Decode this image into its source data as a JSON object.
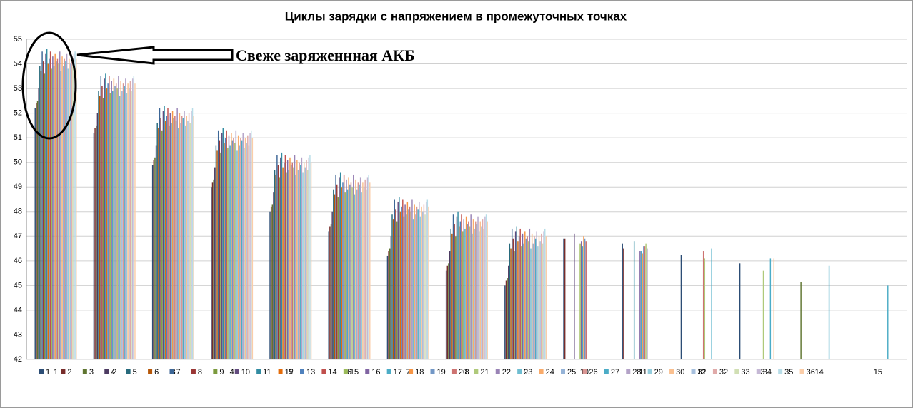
{
  "chart_data": {
    "type": "bar",
    "title": "Циклы зарядки с напряжением в промежуточных точках",
    "annotation": "Свеже заряженнная АКБ",
    "categories": [
      "1",
      "2",
      "3",
      "4",
      "5",
      "6",
      "7",
      "8",
      "9",
      "10",
      "11",
      "12",
      "13",
      "14",
      "15"
    ],
    "ylim": [
      42,
      55
    ],
    "yticks": [
      42,
      43,
      44,
      45,
      46,
      47,
      48,
      49,
      50,
      51,
      52,
      53,
      54,
      55
    ],
    "grid": true,
    "legend": "bottom",
    "series": [
      {
        "name": "1",
        "color": "#2C4D75",
        "values": [
          52.2,
          51.2,
          49.9,
          49.0,
          48.0,
          47.2,
          46.2,
          45.6,
          45.0,
          46.9,
          46.7,
          46.25,
          45.9,
          null,
          null
        ]
      },
      {
        "name": "2",
        "color": "#772C2A",
        "values": [
          52.4,
          51.4,
          50.1,
          49.2,
          48.2,
          47.4,
          46.4,
          45.8,
          45.2,
          46.9,
          46.5,
          null,
          null,
          null,
          null
        ]
      },
      {
        "name": "3",
        "color": "#5F7530",
        "values": [
          52.5,
          51.5,
          50.2,
          49.3,
          48.3,
          47.5,
          46.5,
          45.9,
          45.3,
          null,
          null,
          null,
          null,
          45.15,
          null
        ]
      },
      {
        "name": "4",
        "color": "#4D3B62",
        "values": [
          53.0,
          52.0,
          50.7,
          49.8,
          48.8,
          48.0,
          47.0,
          46.4,
          45.8,
          null,
          null,
          null,
          null,
          null,
          null
        ]
      },
      {
        "name": "5",
        "color": "#276A7C",
        "values": [
          53.9,
          52.9,
          51.6,
          50.7,
          49.7,
          48.9,
          47.9,
          47.3,
          46.7,
          null,
          null,
          null,
          null,
          null,
          null
        ]
      },
      {
        "name": "6",
        "color": "#B65708",
        "values": [
          53.7,
          52.7,
          51.4,
          50.5,
          49.5,
          48.7,
          47.7,
          47.1,
          46.5,
          null,
          null,
          null,
          null,
          null,
          null
        ]
      },
      {
        "name": "7",
        "color": "#3C6696",
        "values": [
          54.5,
          53.5,
          52.2,
          51.3,
          50.3,
          49.5,
          48.5,
          47.9,
          47.3,
          null,
          null,
          null,
          null,
          null,
          null
        ]
      },
      {
        "name": "8",
        "color": "#9A3735",
        "values": [
          54.1,
          53.1,
          51.8,
          50.9,
          49.9,
          49.1,
          48.1,
          47.5,
          46.9,
          null,
          null,
          null,
          null,
          null,
          null
        ]
      },
      {
        "name": "9",
        "color": "#7B9A3D",
        "values": [
          53.6,
          52.6,
          51.3,
          50.4,
          49.4,
          48.6,
          47.6,
          47.0,
          46.4,
          null,
          null,
          null,
          null,
          null,
          null
        ]
      },
      {
        "name": "10",
        "color": "#634C7F",
        "values": [
          54.4,
          53.4,
          52.1,
          51.2,
          50.2,
          49.4,
          48.4,
          47.8,
          47.2,
          47.1,
          null,
          null,
          null,
          null,
          null
        ]
      },
      {
        "name": "11",
        "color": "#328CA2",
        "values": [
          54.6,
          53.6,
          52.3,
          51.4,
          50.4,
          49.6,
          48.6,
          48.0,
          47.4,
          null,
          46.8,
          null,
          null,
          null,
          null
        ]
      },
      {
        "name": "12",
        "color": "#E46C0A",
        "values": [
          54.0,
          53.0,
          51.7,
          50.8,
          49.8,
          49.0,
          48.0,
          47.4,
          46.8,
          null,
          null,
          null,
          null,
          null,
          null
        ]
      },
      {
        "name": "13",
        "color": "#4F81BD",
        "values": [
          54.2,
          53.2,
          51.9,
          51.0,
          50.0,
          49.2,
          48.2,
          47.6,
          47.0,
          null,
          null,
          null,
          null,
          null,
          null
        ]
      },
      {
        "name": "14",
        "color": "#C0504D",
        "values": [
          54.5,
          53.5,
          52.2,
          51.3,
          50.3,
          49.5,
          48.5,
          47.9,
          47.3,
          null,
          null,
          null,
          null,
          null,
          null
        ]
      },
      {
        "name": "15",
        "color": "#9BBB59",
        "values": [
          53.8,
          52.8,
          51.5,
          50.6,
          49.6,
          48.8,
          47.8,
          47.2,
          46.6,
          46.7,
          null,
          null,
          null,
          null,
          null
        ]
      },
      {
        "name": "16",
        "color": "#8064A2",
        "values": [
          54.3,
          53.3,
          52.0,
          51.1,
          50.1,
          49.3,
          48.3,
          47.7,
          47.1,
          46.8,
          46.4,
          null,
          null,
          null,
          null
        ]
      },
      {
        "name": "17",
        "color": "#4BACC6",
        "values": [
          53.9,
          52.9,
          51.6,
          50.7,
          49.7,
          48.9,
          47.9,
          47.3,
          46.7,
          46.6,
          46.4,
          null,
          null,
          null,
          null
        ]
      },
      {
        "name": "18",
        "color": "#F79646",
        "values": [
          54.4,
          53.4,
          52.1,
          51.2,
          50.2,
          49.4,
          48.4,
          47.8,
          47.2,
          47.0,
          46.3,
          null,
          null,
          null,
          null
        ]
      },
      {
        "name": "19",
        "color": "#7297C6",
        "values": [
          54.1,
          53.1,
          51.8,
          50.9,
          49.9,
          49.1,
          48.1,
          47.5,
          46.9,
          46.9,
          46.6,
          null,
          null,
          null,
          null
        ]
      },
      {
        "name": "20",
        "color": "#CD7371",
        "values": [
          54.2,
          53.2,
          51.9,
          51.0,
          50.0,
          49.2,
          48.2,
          47.6,
          47.0,
          46.8,
          46.6,
          46.4,
          null,
          null,
          null
        ]
      },
      {
        "name": "21",
        "color": "#AFC97A",
        "values": [
          54.0,
          53.0,
          51.7,
          50.8,
          49.8,
          49.0,
          48.0,
          47.4,
          46.8,
          null,
          46.7,
          46.1,
          45.6,
          null,
          null
        ]
      },
      {
        "name": "22",
        "color": "#9983B5",
        "values": [
          54.5,
          53.5,
          52.2,
          51.3,
          50.3,
          49.5,
          48.5,
          47.9,
          47.3,
          null,
          46.5,
          null,
          null,
          null,
          null
        ]
      },
      {
        "name": "23",
        "color": "#6FBDD1",
        "values": [
          53.7,
          52.7,
          51.4,
          50.5,
          49.5,
          48.7,
          47.7,
          47.1,
          46.5,
          null,
          null,
          null,
          null,
          null,
          null
        ]
      },
      {
        "name": "24",
        "color": "#F9AB6B",
        "values": [
          54.3,
          53.3,
          52.0,
          51.1,
          50.1,
          49.3,
          48.3,
          47.7,
          47.1,
          null,
          null,
          null,
          null,
          null,
          null
        ]
      },
      {
        "name": "25",
        "color": "#95B3D7",
        "values": [
          53.9,
          52.9,
          51.6,
          50.7,
          49.7,
          48.9,
          47.9,
          47.3,
          46.7,
          null,
          null,
          null,
          null,
          null,
          null
        ]
      },
      {
        "name": "26",
        "color": "#D99694",
        "values": [
          54.2,
          53.2,
          51.9,
          51.0,
          50.0,
          49.2,
          48.2,
          47.6,
          47.0,
          null,
          null,
          null,
          null,
          null,
          null
        ]
      },
      {
        "name": "27",
        "color": "#4BACC6",
        "values": [
          54.1,
          53.1,
          51.8,
          50.9,
          49.9,
          49.1,
          48.1,
          47.5,
          46.9,
          null,
          null,
          46.5,
          46.1,
          45.8,
          45.0
        ]
      },
      {
        "name": "28",
        "color": "#B3A2C7",
        "values": [
          54.4,
          53.4,
          52.1,
          51.2,
          50.2,
          49.4,
          48.4,
          47.8,
          47.2,
          null,
          null,
          null,
          null,
          null,
          null
        ]
      },
      {
        "name": "29",
        "color": "#93CDDD",
        "values": [
          53.8,
          52.8,
          51.5,
          50.6,
          49.6,
          48.8,
          47.8,
          47.2,
          46.6,
          null,
          null,
          null,
          null,
          null,
          null
        ]
      },
      {
        "name": "30",
        "color": "#FAC090",
        "values": [
          54.2,
          53.2,
          51.9,
          51.0,
          50.0,
          49.2,
          48.2,
          47.6,
          47.0,
          null,
          null,
          null,
          46.1,
          null,
          null
        ]
      },
      {
        "name": "31",
        "color": "#A7C0DE",
        "values": [
          54.0,
          53.0,
          51.7,
          50.8,
          49.8,
          49.0,
          48.0,
          47.4,
          46.8,
          null,
          null,
          null,
          null,
          null,
          null
        ]
      },
      {
        "name": "32",
        "color": "#E0AAA9",
        "values": [
          54.3,
          53.3,
          52.0,
          51.1,
          50.1,
          49.3,
          48.3,
          47.7,
          47.1,
          null,
          null,
          null,
          null,
          null,
          null
        ]
      },
      {
        "name": "33",
        "color": "#D1DFB4",
        "values": [
          53.9,
          52.9,
          51.6,
          50.7,
          49.7,
          48.9,
          47.9,
          47.3,
          46.7,
          null,
          null,
          null,
          null,
          null,
          null
        ]
      },
      {
        "name": "34",
        "color": "#C5B8D5",
        "values": [
          54.4,
          53.4,
          52.1,
          51.2,
          50.2,
          49.4,
          48.4,
          47.8,
          47.2,
          null,
          null,
          null,
          null,
          null,
          null
        ]
      },
      {
        "name": "35",
        "color": "#B7DDE8",
        "values": [
          54.5,
          53.5,
          52.2,
          51.3,
          50.3,
          49.5,
          48.5,
          47.9,
          47.3,
          null,
          null,
          null,
          null,
          null,
          null
        ]
      },
      {
        "name": "36",
        "color": "#FBCDA8",
        "values": [
          54.2,
          53.2,
          51.9,
          51.0,
          50.0,
          49.2,
          48.2,
          47.6,
          47.0,
          null,
          null,
          null,
          null,
          null,
          null
        ]
      }
    ]
  }
}
